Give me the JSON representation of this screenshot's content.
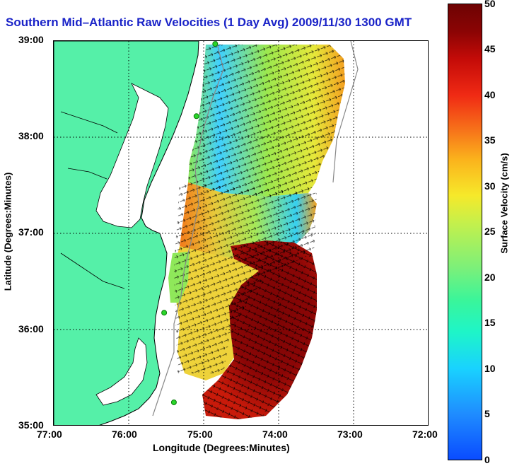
{
  "title": "Southern Mid–Atlantic Raw Velocities (1 Day Avg) 2009/11/30 1300 GMT",
  "axes": {
    "xlabel": "Longitude (Degrees:Minutes)",
    "ylabel": "Latitude (Degrees:Minutes)",
    "x_ticks": [
      "77:00",
      "76:00",
      "75:00",
      "74:00",
      "73:00",
      "72:00"
    ],
    "y_ticks": [
      "39:00",
      "38:00",
      "37:00",
      "36:00",
      "35:00"
    ],
    "x_range_deg_w": [
      77,
      72
    ],
    "y_range_deg_n": [
      35,
      39
    ],
    "grid": "dotted"
  },
  "colorbar": {
    "label": "Surface Velocity (cm/s)",
    "ticks": [
      "50",
      "45",
      "40",
      "35",
      "30",
      "25",
      "20",
      "15",
      "10",
      "5",
      "0"
    ],
    "range": [
      0,
      50
    ]
  },
  "colors": {
    "land": "#55f0a8",
    "title": "#1a23c8",
    "radar_site": "#2ad62a"
  },
  "radar_sites": [
    {
      "lon_w": 74.85,
      "lat_n": 38.97
    },
    {
      "lon_w": 75.1,
      "lat_n": 38.22
    },
    {
      "lon_w": 75.53,
      "lat_n": 36.18
    },
    {
      "lon_w": 75.4,
      "lat_n": 35.25
    }
  ]
}
